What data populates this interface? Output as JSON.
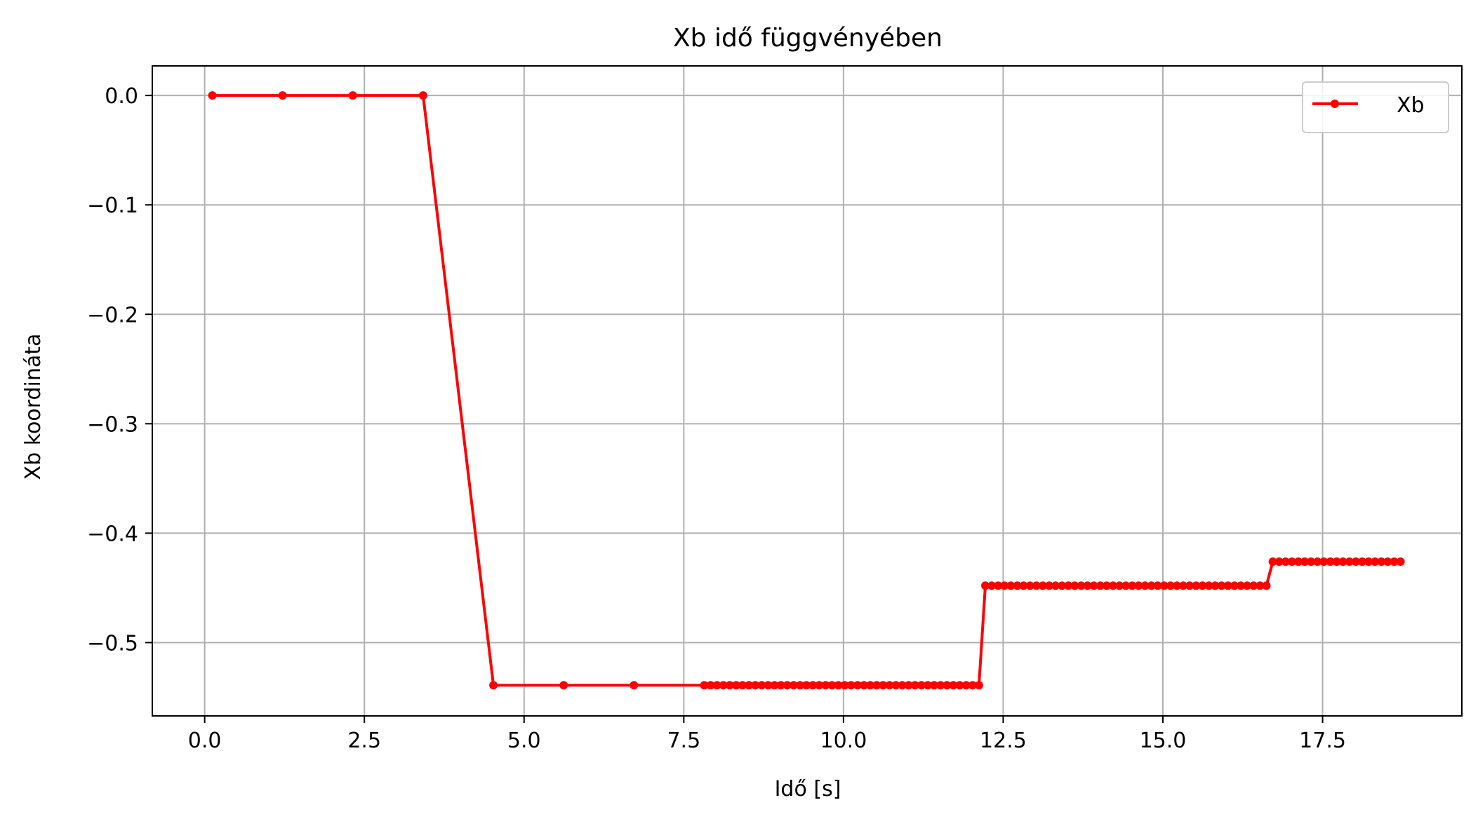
{
  "chart_data": {
    "type": "line",
    "title": "Xb idő függvényében",
    "xlabel": "Idő [s]",
    "ylabel": "Xb koordináta",
    "xlim": [
      -0.82,
      19.68
    ],
    "ylim": [
      -0.567,
      0.027
    ],
    "x_ticks": [
      0.0,
      2.5,
      5.0,
      7.5,
      10.0,
      12.5,
      15.0,
      17.5
    ],
    "x_tick_labels": [
      "0.0",
      "2.5",
      "5.0",
      "7.5",
      "10.0",
      "12.5",
      "15.0",
      "17.5"
    ],
    "y_ticks": [
      0.0,
      -0.1,
      -0.2,
      -0.3,
      -0.4,
      -0.5
    ],
    "y_tick_labels": [
      "0.0",
      "−0.1",
      "−0.2",
      "−0.3",
      "−0.4",
      "−0.5"
    ],
    "grid": true,
    "legend_position": "top-right",
    "series": [
      {
        "name": "Xb",
        "color": "#ff0000",
        "marker": "circle",
        "x": [
          0.12,
          1.22,
          2.32,
          3.42,
          4.52,
          5.62,
          6.72,
          7.82,
          7.92,
          8.02,
          8.12,
          8.22,
          8.32,
          8.42,
          8.52,
          8.62,
          8.72,
          8.82,
          8.92,
          9.02,
          9.12,
          9.22,
          9.32,
          9.42,
          9.52,
          9.62,
          9.72,
          9.82,
          9.92,
          10.02,
          10.12,
          10.22,
          10.32,
          10.42,
          10.52,
          10.62,
          10.72,
          10.82,
          10.92,
          11.02,
          11.12,
          11.22,
          11.32,
          11.42,
          11.52,
          11.62,
          11.72,
          11.82,
          11.92,
          12.02,
          12.12,
          12.22,
          12.32,
          12.42,
          12.52,
          12.62,
          12.72,
          12.82,
          12.92,
          13.02,
          13.12,
          13.22,
          13.32,
          13.42,
          13.52,
          13.62,
          13.72,
          13.82,
          13.92,
          14.02,
          14.12,
          14.22,
          14.32,
          14.42,
          14.52,
          14.62,
          14.72,
          14.82,
          14.92,
          15.02,
          15.12,
          15.22,
          15.32,
          15.42,
          15.52,
          15.62,
          15.72,
          15.82,
          15.92,
          16.02,
          16.12,
          16.22,
          16.32,
          16.42,
          16.52,
          16.62,
          16.72,
          16.82,
          16.92,
          17.02,
          17.12,
          17.22,
          17.32,
          17.42,
          17.52,
          17.62,
          17.72,
          17.82,
          17.92,
          18.02,
          18.12,
          18.22,
          18.32,
          18.42,
          18.52,
          18.62,
          18.72
        ],
        "y": [
          0.0,
          0.0,
          0.0,
          0.0,
          -0.539,
          -0.539,
          -0.539,
          -0.539,
          -0.539,
          -0.539,
          -0.539,
          -0.539,
          -0.539,
          -0.539,
          -0.539,
          -0.539,
          -0.539,
          -0.539,
          -0.539,
          -0.539,
          -0.539,
          -0.539,
          -0.539,
          -0.539,
          -0.539,
          -0.539,
          -0.539,
          -0.539,
          -0.539,
          -0.539,
          -0.539,
          -0.539,
          -0.539,
          -0.539,
          -0.539,
          -0.539,
          -0.539,
          -0.539,
          -0.539,
          -0.539,
          -0.539,
          -0.539,
          -0.539,
          -0.539,
          -0.539,
          -0.539,
          -0.539,
          -0.539,
          -0.539,
          -0.539,
          -0.539,
          -0.448,
          -0.448,
          -0.448,
          -0.448,
          -0.448,
          -0.448,
          -0.448,
          -0.448,
          -0.448,
          -0.448,
          -0.448,
          -0.448,
          -0.448,
          -0.448,
          -0.448,
          -0.448,
          -0.448,
          -0.448,
          -0.448,
          -0.448,
          -0.448,
          -0.448,
          -0.448,
          -0.448,
          -0.448,
          -0.448,
          -0.448,
          -0.448,
          -0.448,
          -0.448,
          -0.448,
          -0.448,
          -0.448,
          -0.448,
          -0.448,
          -0.448,
          -0.448,
          -0.448,
          -0.448,
          -0.448,
          -0.448,
          -0.448,
          -0.448,
          -0.448,
          -0.448,
          -0.426,
          -0.426,
          -0.426,
          -0.426,
          -0.426,
          -0.426,
          -0.426,
          -0.426,
          -0.426,
          -0.426,
          -0.426,
          -0.426,
          -0.426,
          -0.426,
          -0.426,
          -0.426,
          -0.426,
          -0.426,
          -0.426,
          -0.426,
          -0.426
        ]
      }
    ]
  }
}
